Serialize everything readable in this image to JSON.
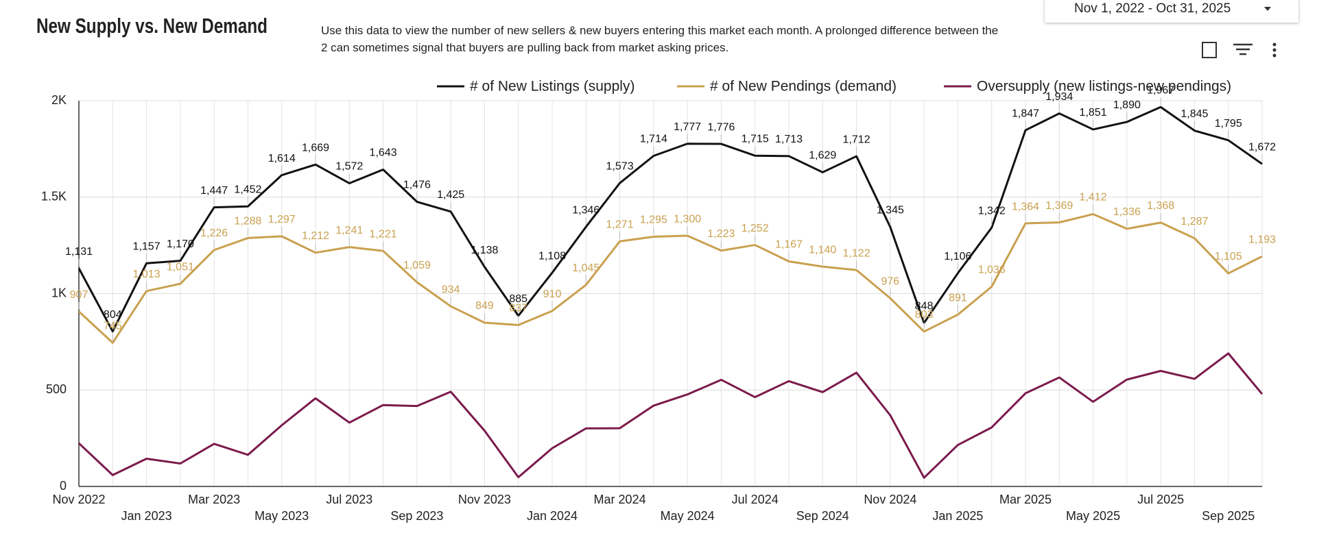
{
  "chart_data": {
    "type": "line",
    "title": "New Supply vs. New Demand",
    "description": "Use this data to view the number of new sellers & new buyers entering this market each month.  A prolonged difference between the 2 can sometimes signal that buyers are pulling back from market asking prices.",
    "date_range": "Nov 1, 2022 - Oct 31, 2025",
    "categories": [
      "Nov 2022",
      null,
      "Jan 2023",
      null,
      "Mar 2023",
      null,
      "May 2023",
      null,
      "Jul 2023",
      null,
      "Sep 2023",
      null,
      "Nov 2023",
      null,
      "Jan 2024",
      null,
      "Mar 2024",
      null,
      "May 2024",
      null,
      "Jul 2024",
      null,
      "Sep 2024",
      null,
      "Nov 2024",
      null,
      "Jan 2025",
      null,
      "Mar 2025",
      null,
      "May 2025",
      null,
      "Jul 2025",
      null,
      "Sep 2025",
      null
    ],
    "series": [
      {
        "name": "# of New Listings (supply)",
        "color": "#111111",
        "values": [
          1131,
          804,
          1157,
          1170,
          1447,
          1452,
          1614,
          1669,
          1572,
          1643,
          1476,
          1425,
          1138,
          885,
          1108,
          1346,
          1573,
          1714,
          1777,
          1776,
          1715,
          1713,
          1629,
          1712,
          1345,
          848,
          1106,
          1342,
          1847,
          1934,
          1851,
          1890,
          1967,
          1845,
          1795,
          1672
        ],
        "value_labels": [
          "1,131",
          "804",
          "1,157",
          "1,170",
          "1,447",
          "1,452",
          "1,614",
          "1,669",
          "1,572",
          "1,643",
          "1,476",
          "1,425",
          "1,138",
          "885",
          "1,108",
          "1,346",
          "1,573",
          "1,714",
          "1,777",
          "1,776",
          "1,715",
          "1,713",
          "1,629",
          "1,712",
          "1,345",
          "848",
          "1,106",
          "1,342",
          "1,847",
          "1,934",
          "1,851",
          "1,890",
          "1,967",
          "1,845",
          "1,795",
          "1,672"
        ]
      },
      {
        "name": "# of New Pendings (demand)",
        "color": "#c9a04f",
        "values": [
          907,
          745,
          1013,
          1051,
          1226,
          1288,
          1297,
          1212,
          1241,
          1221,
          1059,
          934,
          849,
          837,
          910,
          1045,
          1271,
          1295,
          1300,
          1223,
          1252,
          1167,
          1140,
          1122,
          976,
          803,
          891,
          1036,
          1364,
          1369,
          1412,
          1336,
          1368,
          1287,
          1105,
          1193
        ],
        "value_labels": [
          "907",
          "745",
          "1,013",
          "1,051",
          "1,226",
          "1,288",
          "1,297",
          "1,212",
          "1,241",
          "1,221",
          "1,059",
          "934",
          "849",
          "837",
          "910",
          "1,045",
          "1,271",
          "1,295",
          "1,300",
          "1,223",
          "1,252",
          "1,167",
          "1,140",
          "1,122",
          "976",
          "803",
          "891",
          "1,036",
          "1,364",
          "1,369",
          "1,412",
          "1,336",
          "1,368",
          "1,287",
          "1,105",
          "1,193"
        ]
      },
      {
        "name": "Oversupply (new listings-new pendings)",
        "color": "#7b1a4b",
        "values": [
          224,
          59,
          144,
          119,
          221,
          164,
          317,
          457,
          331,
          422,
          417,
          491,
          289,
          48,
          198,
          301,
          302,
          419,
          477,
          553,
          463,
          546,
          489,
          590,
          369,
          45,
          215,
          306,
          483,
          565,
          439,
          554,
          599,
          558,
          690,
          479
        ]
      }
    ],
    "ylim": [
      0,
      2000
    ],
    "yticks": [
      0,
      500,
      {
        "value": 1000,
        "label": "1K"
      },
      {
        "value": 1500,
        "label": "1.5K"
      },
      {
        "value": 2000,
        "label": "2K"
      }
    ],
    "grid": true
  }
}
